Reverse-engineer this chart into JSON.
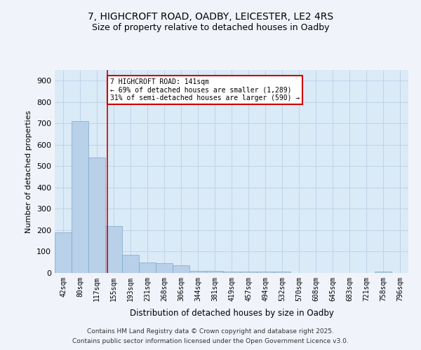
{
  "title": "7, HIGHCROFT ROAD, OADBY, LEICESTER, LE2 4RS",
  "subtitle": "Size of property relative to detached houses in Oadby",
  "xlabel": "Distribution of detached houses by size in Oadby",
  "ylabel": "Number of detached properties",
  "bar_labels": [
    "42sqm",
    "80sqm",
    "117sqm",
    "155sqm",
    "193sqm",
    "231sqm",
    "268sqm",
    "306sqm",
    "344sqm",
    "381sqm",
    "419sqm",
    "457sqm",
    "494sqm",
    "532sqm",
    "570sqm",
    "608sqm",
    "645sqm",
    "683sqm",
    "721sqm",
    "758sqm",
    "796sqm"
  ],
  "bar_values": [
    190,
    710,
    540,
    220,
    85,
    50,
    45,
    35,
    10,
    10,
    5,
    5,
    5,
    5,
    0,
    0,
    0,
    0,
    0,
    5,
    0
  ],
  "bar_color": "#b8d0e8",
  "bar_edge_color": "#7aa8cc",
  "plot_bg_color": "#daeaf7",
  "fig_bg_color": "#f0f4fa",
  "grid_color": "#c0d4e8",
  "vline_color": "#cc0000",
  "vline_x": 2.632,
  "annotation_text": "7 HIGHCROFT ROAD: 141sqm\n← 69% of detached houses are smaller (1,289)\n31% of semi-detached houses are larger (590) →",
  "annotation_box_color": "#cc0000",
  "ylim": [
    0,
    950
  ],
  "yticks": [
    0,
    100,
    200,
    300,
    400,
    500,
    600,
    700,
    800,
    900
  ],
  "footer_line1": "Contains HM Land Registry data © Crown copyright and database right 2025.",
  "footer_line2": "Contains public sector information licensed under the Open Government Licence v3.0."
}
